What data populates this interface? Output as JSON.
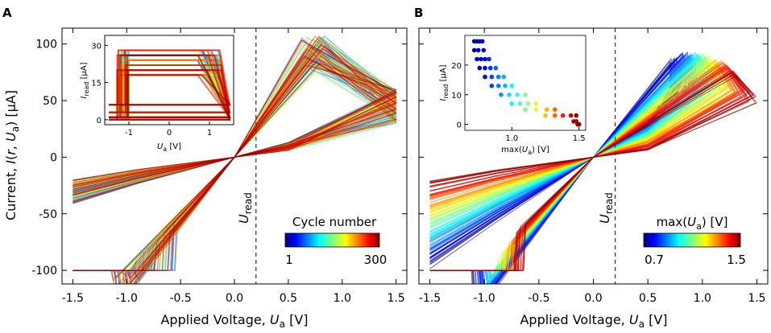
{
  "panel_a": {
    "letter": "A",
    "ylabel_pre": "Current, ",
    "ylabel_I": "I",
    "ylabel_mid": "(",
    "ylabel_r": "r",
    "ylabel_sep": ", ",
    "ylabel_U": "U",
    "ylabel_sub": "a",
    "ylabel_post": ") [μA]",
    "xlabel_pre": "Applied Voltage, ",
    "xlabel_U": "U",
    "xlabel_sub": "a",
    "xlabel_post": " [V]",
    "uread_U": "U",
    "uread_sub": "read",
    "colorbar_title": "Cycle number",
    "colorbar_min": "1",
    "colorbar_max": "300",
    "inset": {
      "ylabel_I": "I",
      "ylabel_sub": "read",
      "ylabel_post": " [μA]",
      "xlabel_U": "U",
      "xlabel_sub": "a",
      "xlabel_post": " [V]"
    }
  },
  "panel_b": {
    "letter": "B",
    "xlabel_pre": "Applied Voltage, ",
    "xlabel_U": "U",
    "xlabel_sub": "a",
    "xlabel_post": " [V]",
    "uread_U": "U",
    "uread_sub": "read",
    "colorbar_title_pre": "max(",
    "colorbar_title_U": "U",
    "colorbar_title_sub": "a",
    "colorbar_title_post": ") [V]",
    "colorbar_min": "0.7",
    "colorbar_max": "1.5",
    "inset": {
      "ylabel_I": "I",
      "ylabel_sub": "read",
      "ylabel_post": " [μA]",
      "xlabel_pre": "max(",
      "xlabel_U": "U",
      "xlabel_sub": "a",
      "xlabel_post": ") [V]"
    }
  },
  "chart_data": [
    {
      "type": "line",
      "panel": "A",
      "title": "",
      "xlabel": "Applied Voltage, U_a [V]",
      "ylabel": "Current, I(r, U_a) [μA]",
      "xlim": [
        -1.6,
        1.6
      ],
      "ylim": [
        -112,
        114
      ],
      "xticks": [
        -1.5,
        -1.0,
        -0.5,
        0.0,
        0.5,
        1.0,
        1.5
      ],
      "yticks": [
        -100,
        -50,
        0,
        50,
        100
      ],
      "xtick_labels": [
        "-1.5",
        "-1.0",
        "-0.5",
        "0.0",
        "0.5",
        "1.0",
        "1.5"
      ],
      "ytick_labels": [
        "-100",
        "-50",
        "0",
        "50",
        "100"
      ],
      "u_read_v": 0.2,
      "n_cycles": 300,
      "color_by": "cycle number",
      "colorbar": {
        "min": 1,
        "max": 300,
        "label": "Cycle number",
        "colormap": "jet"
      },
      "annotations": [
        "U_read"
      ],
      "description_values": {
        "negative_switch_voltage_range": [
          -1.15,
          -0.55
        ],
        "negative_saturation_current": -100,
        "positive_peak_voltage_range": [
          0.6,
          0.85
        ],
        "positive_peak_current_range": [
          80,
          108
        ],
        "current_at_1_5V_range": [
          30,
          60
        ]
      },
      "inset": {
        "type": "line",
        "xlabel": "U_a [V]",
        "ylabel": "I_read [μA]",
        "xlim": [
          -1.6,
          1.6
        ],
        "ylim": [
          -2,
          34
        ],
        "xticks": [
          -1,
          0,
          1
        ],
        "yticks": [
          0,
          15,
          30
        ],
        "xtick_labels": [
          "-1",
          "0",
          "1"
        ],
        "ytick_labels": [
          "0",
          "15",
          "30"
        ],
        "high_state_levels": [
          18,
          20,
          22,
          24,
          26,
          28
        ],
        "low_state_levels": [
          0,
          1,
          3,
          6
        ]
      }
    },
    {
      "type": "line",
      "panel": "B",
      "title": "",
      "xlabel": "Applied Voltage, U_a [V]",
      "ylabel": "",
      "xlim": [
        -1.6,
        1.6
      ],
      "ylim": [
        -112,
        114
      ],
      "xticks": [
        -1.5,
        -1.0,
        -0.5,
        0.0,
        0.5,
        1.0,
        1.5
      ],
      "yticks": [
        -100,
        -50,
        0,
        50,
        100
      ],
      "xtick_labels": [
        "-1.5",
        "-1.0",
        "-0.5",
        "0.0",
        "0.5",
        "1.0",
        "1.5"
      ],
      "u_read_v": 0.2,
      "color_by": "max(U_a)",
      "colorbar": {
        "min": 0.7,
        "max": 1.5,
        "label": "max(U_a) [V]",
        "colormap": "jet"
      },
      "annotations": [
        "U_read"
      ],
      "inset": {
        "type": "scatter",
        "xlabel": "max(U_a) [V]",
        "ylabel": "I_read [μA]",
        "xlim": [
          0.65,
          1.55
        ],
        "ylim": [
          -2,
          30
        ],
        "xticks": [
          1.0,
          1.5
        ],
        "yticks": [
          0,
          10,
          20
        ],
        "xtick_labels": [
          "1.0",
          "1.5"
        ],
        "ytick_labels": [
          "0",
          "10",
          "20"
        ],
        "points": [
          {
            "x": 0.72,
            "y": 28
          },
          {
            "x": 0.74,
            "y": 28
          },
          {
            "x": 0.76,
            "y": 28
          },
          {
            "x": 0.78,
            "y": 28
          },
          {
            "x": 0.72,
            "y": 25
          },
          {
            "x": 0.75,
            "y": 25
          },
          {
            "x": 0.79,
            "y": 25
          },
          {
            "x": 0.74,
            "y": 22
          },
          {
            "x": 0.77,
            "y": 22
          },
          {
            "x": 0.8,
            "y": 22
          },
          {
            "x": 0.83,
            "y": 22
          },
          {
            "x": 0.76,
            "y": 19
          },
          {
            "x": 0.8,
            "y": 19
          },
          {
            "x": 0.84,
            "y": 19
          },
          {
            "x": 0.88,
            "y": 19
          },
          {
            "x": 0.8,
            "y": 16
          },
          {
            "x": 0.85,
            "y": 16
          },
          {
            "x": 0.9,
            "y": 16
          },
          {
            "x": 0.94,
            "y": 16
          },
          {
            "x": 0.85,
            "y": 13
          },
          {
            "x": 0.9,
            "y": 13
          },
          {
            "x": 0.95,
            "y": 13
          },
          {
            "x": 1.0,
            "y": 13
          },
          {
            "x": 0.92,
            "y": 10
          },
          {
            "x": 0.98,
            "y": 10
          },
          {
            "x": 1.04,
            "y": 10
          },
          {
            "x": 1.1,
            "y": 10
          },
          {
            "x": 1.0,
            "y": 7
          },
          {
            "x": 1.06,
            "y": 7
          },
          {
            "x": 1.12,
            "y": 7
          },
          {
            "x": 1.18,
            "y": 7
          },
          {
            "x": 1.1,
            "y": 5
          },
          {
            "x": 1.18,
            "y": 5
          },
          {
            "x": 1.26,
            "y": 5
          },
          {
            "x": 1.32,
            "y": 5
          },
          {
            "x": 1.25,
            "y": 3
          },
          {
            "x": 1.32,
            "y": 3
          },
          {
            "x": 1.38,
            "y": 3
          },
          {
            "x": 1.44,
            "y": 3
          },
          {
            "x": 1.48,
            "y": 3
          },
          {
            "x": 1.46,
            "y": 1
          },
          {
            "x": 1.48,
            "y": 1
          },
          {
            "x": 1.49,
            "y": 0
          },
          {
            "x": 1.5,
            "y": 0
          }
        ]
      }
    }
  ]
}
